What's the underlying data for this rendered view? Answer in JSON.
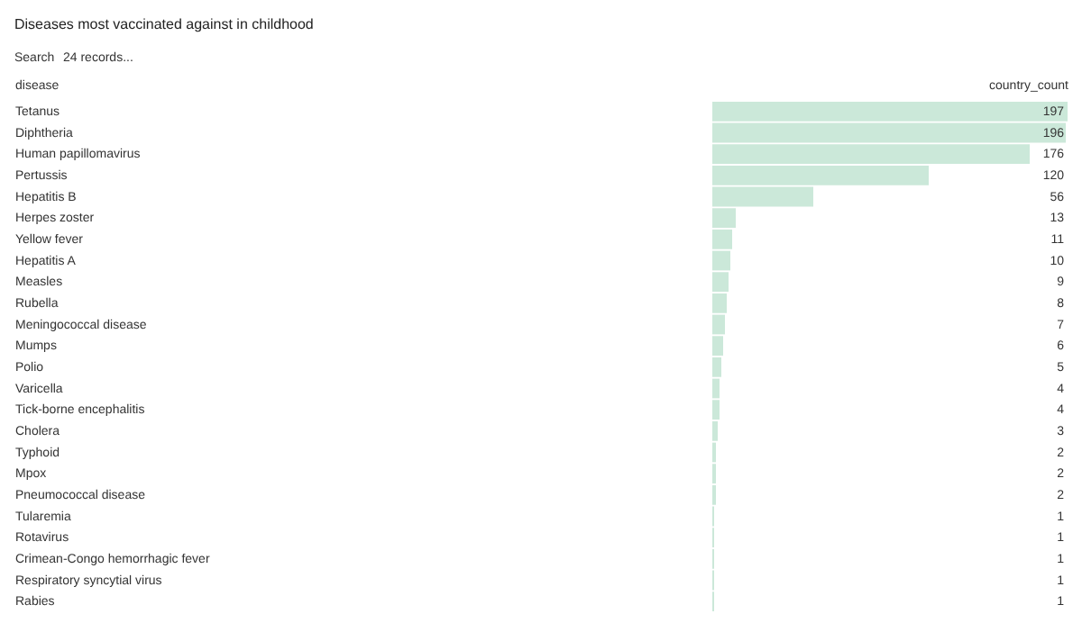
{
  "chart_data": {
    "type": "bar",
    "orientation": "horizontal",
    "title": "Diseases most vaccinated against in childhood",
    "ylabel": "disease",
    "xlabel": "country_count",
    "categories": [
      "Tetanus",
      "Diphtheria",
      "Human papillomavirus",
      "Pertussis",
      "Hepatitis B",
      "Herpes zoster",
      "Yellow fever",
      "Hepatitis A",
      "Measles",
      "Rubella",
      "Meningococcal disease",
      "Mumps",
      "Polio",
      "Varicella",
      "Tick-borne encephalitis",
      "Cholera",
      "Typhoid",
      "Mpox",
      "Pneumococcal disease",
      "Tularemia",
      "Rotavirus",
      "Crimean-Congo hemorrhagic fever",
      "Respiratory syncytial virus",
      "Rabies"
    ],
    "values": [
      197,
      196,
      176,
      120,
      56,
      13,
      11,
      10,
      9,
      8,
      7,
      6,
      5,
      4,
      4,
      3,
      2,
      2,
      2,
      1,
      1,
      1,
      1,
      1
    ],
    "color": "#cbe8d9",
    "data_labels": true,
    "tick_labels": "y",
    "annotations": [
      "Search",
      "24 records..."
    ]
  }
}
